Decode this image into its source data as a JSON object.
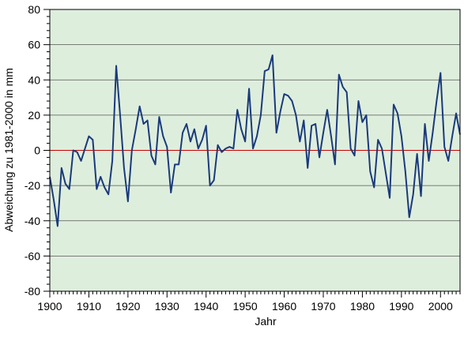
{
  "chart_data": {
    "type": "line",
    "x_label": "Jahr",
    "y_label": "Abweichung zu 1981-2000 in mm",
    "x": [
      1900,
      1901,
      1902,
      1903,
      1904,
      1905,
      1906,
      1907,
      1908,
      1909,
      1910,
      1911,
      1912,
      1913,
      1914,
      1915,
      1916,
      1917,
      1918,
      1919,
      1920,
      1921,
      1922,
      1923,
      1924,
      1925,
      1926,
      1927,
      1928,
      1929,
      1930,
      1931,
      1932,
      1933,
      1934,
      1935,
      1936,
      1937,
      1938,
      1939,
      1940,
      1941,
      1942,
      1943,
      1944,
      1945,
      1946,
      1947,
      1948,
      1949,
      1950,
      1951,
      1952,
      1953,
      1954,
      1955,
      1956,
      1957,
      1958,
      1959,
      1960,
      1961,
      1962,
      1963,
      1964,
      1965,
      1966,
      1967,
      1968,
      1969,
      1970,
      1971,
      1972,
      1973,
      1974,
      1975,
      1976,
      1977,
      1978,
      1979,
      1980,
      1981,
      1982,
      1983,
      1984,
      1985,
      1986,
      1987,
      1988,
      1989,
      1990,
      1991,
      1992,
      1993,
      1994,
      1995,
      1996,
      1997,
      1998,
      1999,
      2000,
      2001,
      2002,
      2003,
      2004,
      2005
    ],
    "series": [
      {
        "name": "Abweichung",
        "color": "#1a3a7a",
        "values": [
          -15,
          -28,
          -43,
          -10,
          -19,
          -22,
          0,
          -1,
          -6,
          1,
          8,
          6,
          -22,
          -15,
          -21,
          -25,
          -6,
          48,
          20,
          -10,
          -29,
          0,
          12,
          25,
          15,
          17,
          -3,
          -8,
          19,
          8,
          2,
          -24,
          -8,
          -8,
          10,
          15,
          5,
          12,
          1,
          6,
          14,
          -20,
          -17,
          3,
          -1,
          1,
          2,
          1,
          23,
          12,
          5,
          35,
          1,
          8,
          20,
          45,
          46,
          54,
          10,
          22,
          32,
          31,
          28,
          20,
          5,
          17,
          -10,
          14,
          15,
          -4,
          10,
          23,
          8,
          -8,
          43,
          36,
          33,
          1,
          -3,
          28,
          16,
          20,
          -12,
          -21,
          6,
          1,
          -13,
          -27,
          26,
          21,
          8,
          -12,
          -38,
          -25,
          -2,
          -26,
          15,
          -6,
          10,
          28,
          44,
          2,
          -6,
          8,
          21,
          9
        ]
      }
    ],
    "xlim": [
      1900,
      2005
    ],
    "xticks": [
      1900,
      1910,
      1920,
      1930,
      1940,
      1950,
      1960,
      1970,
      1980,
      1990,
      2000
    ],
    "ylim": [
      -80,
      80
    ],
    "yticks": [
      -80,
      -60,
      -40,
      -20,
      0,
      20,
      40,
      60,
      80
    ],
    "grid": true,
    "zero_line_color": "#cc0000",
    "background": "#deeedd"
  }
}
